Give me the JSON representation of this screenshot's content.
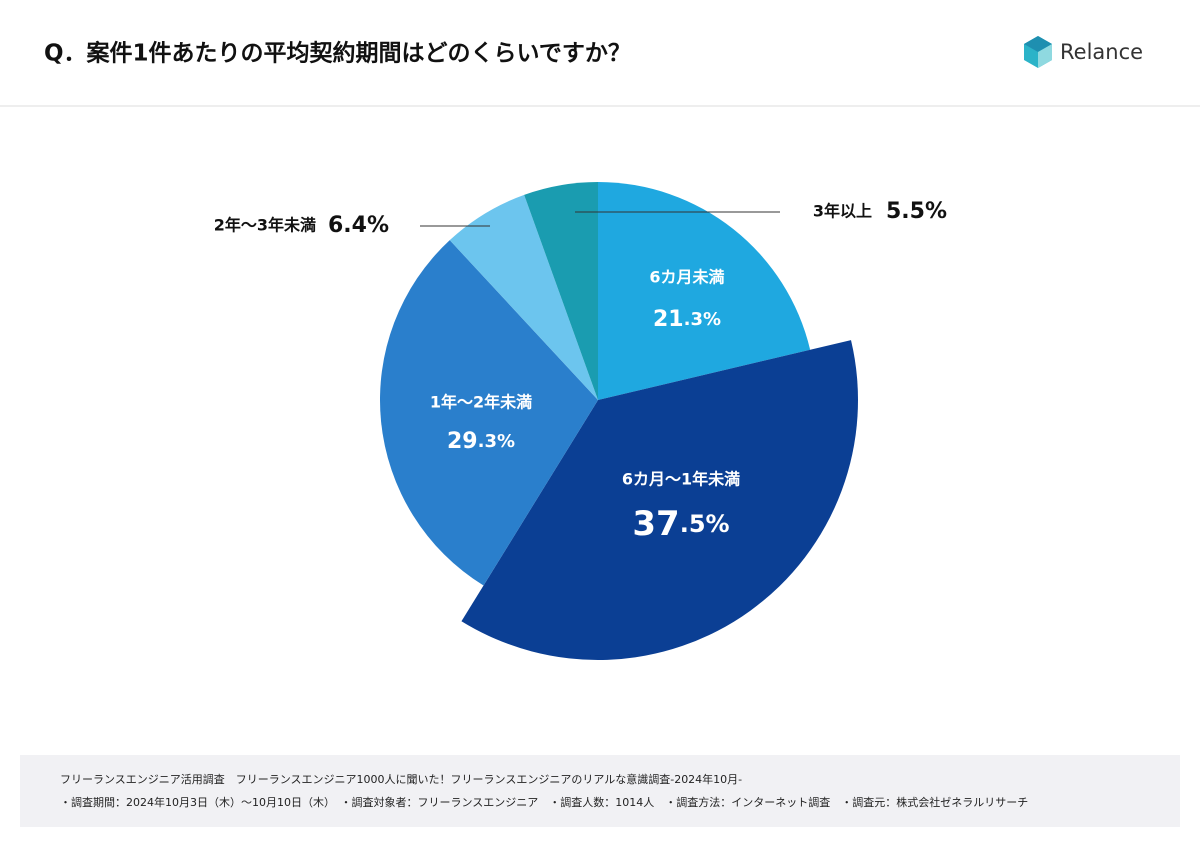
{
  "header": {
    "title": "Q．案件1件あたりの平均契約期間はどのくらいですか？",
    "logo": "Relance"
  },
  "chart_data": {
    "type": "pie",
    "categories": [
      "6カ月未満",
      "6カ月〜1年未満",
      "1年〜2年未満",
      "2年〜3年未満",
      "3年以上"
    ],
    "values": [
      21.3,
      37.5,
      29.3,
      6.4,
      5.5
    ],
    "value_labels": [
      "21.3%",
      "37.5%",
      "29.3%",
      "6.4%",
      "5.5%"
    ],
    "colors": [
      "#1fa8e0",
      "#0b3f94",
      "#2a7fcc",
      "#6cc5ee",
      "#1a9cb0"
    ]
  },
  "footer": {
    "line1": "フリーランスエンジニア活用調査　フリーランスエンジニア1000人に聞いた！フリーランスエンジニアのリアルな意識調査-2024年10月-",
    "line2": "・調査期間：2024年10月3日（木）〜10月10日（木）　・調査対象者：フリーランスエンジニア　・調査人数：1014人　・調査方法：インターネット調査　・調査元：株式会社ゼネラルリサーチ"
  }
}
